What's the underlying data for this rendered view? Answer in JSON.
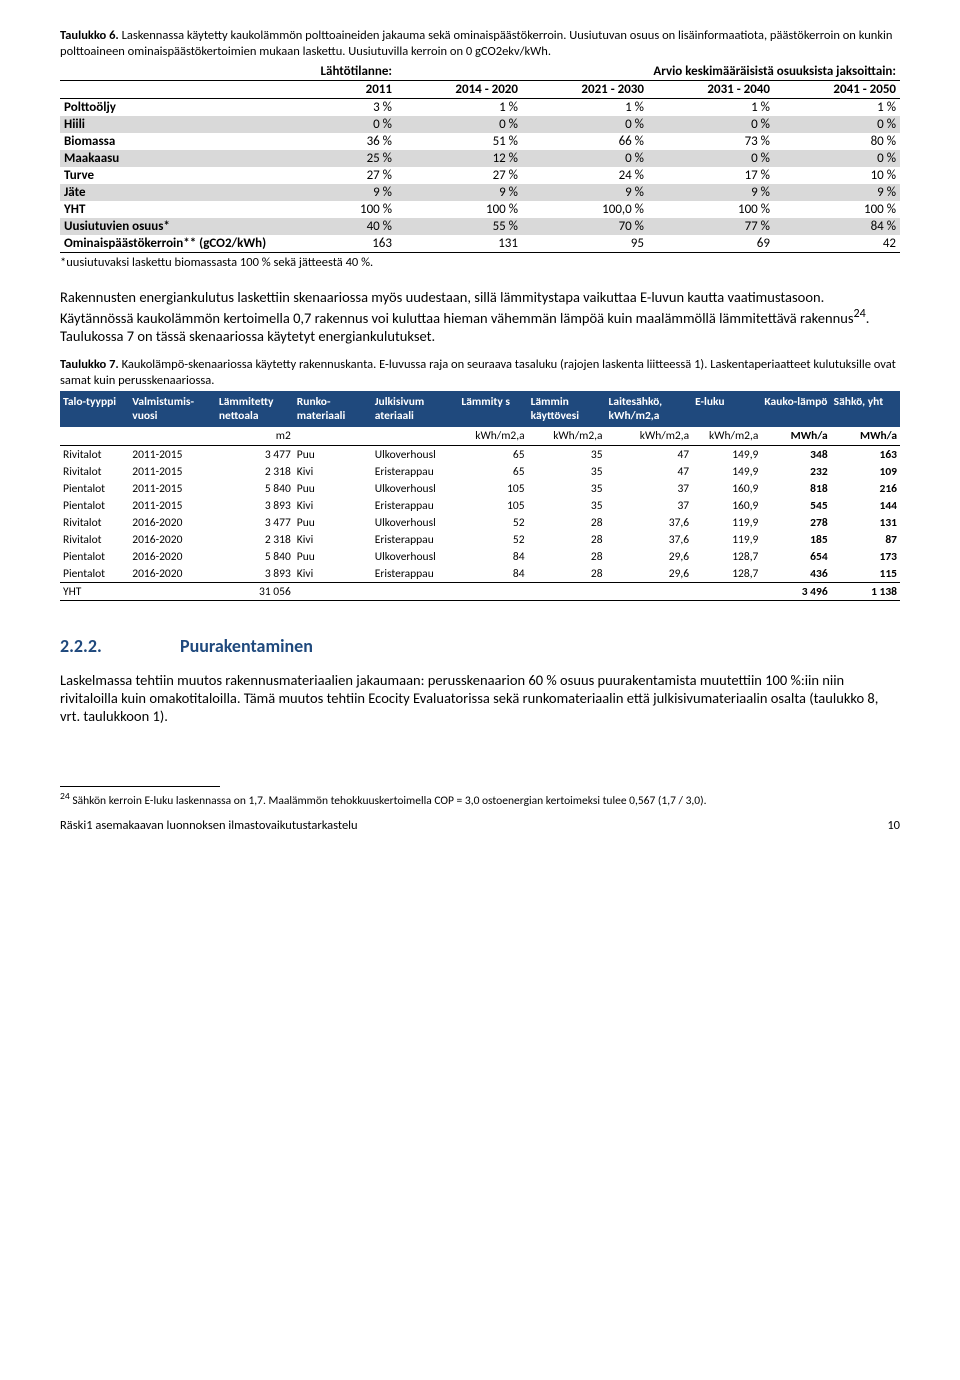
{
  "table6": {
    "caption_bold": "Taulukko 6.",
    "caption_rest": " Laskennassa käytetty kaukolämmön polttoaineiden jakauma sekä ominaispäästökerroin. Uusiutuvan osuus on lisäinformaatiota, päästökerroin on kunkin polttoaineen ominaispäästökertoimien mukaan laskettu. Uusiutuvilla kerroin on 0 gCO2ekv/kWh.",
    "head_a": "Lähtötilanne:",
    "head_b": "Arvio keskimääräisistä osuuksista jaksoittain:",
    "years": [
      "2011",
      "2014 - 2020",
      "2021 - 2030",
      "2031 - 2040",
      "2041 - 2050"
    ],
    "rows": [
      {
        "label": "Polttoöljy",
        "vals": [
          "3 %",
          "1 %",
          "1 %",
          "1 %",
          "1 %"
        ],
        "shade": false
      },
      {
        "label": "Hiili",
        "vals": [
          "0 %",
          "0 %",
          "0 %",
          "0 %",
          "0 %"
        ],
        "shade": true
      },
      {
        "label": "Biomassa",
        "vals": [
          "36 %",
          "51 %",
          "66 %",
          "73 %",
          "80 %"
        ],
        "shade": false
      },
      {
        "label": "Maakaasu",
        "vals": [
          "25 %",
          "12 %",
          "0 %",
          "0 %",
          "0 %"
        ],
        "shade": true
      },
      {
        "label": "Turve",
        "vals": [
          "27 %",
          "27 %",
          "24 %",
          "17 %",
          "10 %"
        ],
        "shade": false
      },
      {
        "label": "Jäte",
        "vals": [
          "9 %",
          "9 %",
          "9 %",
          "9 %",
          "9 %"
        ],
        "shade": true
      },
      {
        "label": "YHT",
        "vals": [
          "100 %",
          "100 %",
          "100,0 %",
          "100 %",
          "100 %"
        ],
        "shade": false
      },
      {
        "label": "Uusiutuvien osuus*",
        "vals": [
          "40 %",
          "55 %",
          "70 %",
          "77 %",
          "84 %"
        ],
        "shade": true
      },
      {
        "label": "Ominaispäästökerroin** (gCO2/kWh)",
        "vals": [
          "163",
          "131",
          "95",
          "69",
          "42"
        ],
        "shade": false,
        "bottom": true
      }
    ],
    "footnote": "*uusiutuvaksi laskettu biomassasta 100 % sekä jätteestä 40 %."
  },
  "para1": "Rakennusten energiankulutus laskettiin skenaariossa myös uudestaan, sillä lämmitystapa vaikuttaa E-luvun kautta vaatimustasoon. Käytännössä kaukolämmön kertoimella 0,7 rakennus voi kuluttaa hieman vähemmän lämpöä kuin maalämmöllä lämmitettävä rakennus",
  "para1_sup": "24",
  "para1_tail": ". Taulukossa 7 on tässä skenaariossa käytetyt energiankulutukset.",
  "table7": {
    "caption_bold": "Taulukko 7.",
    "caption_rest": " Kaukolämpö-skenaariossa käytetty rakennuskanta. E-luvussa raja on seuraava tasaluku (rajojen laskenta liitteessä 1). Laskentaperiaatteet kulutuksille ovat samat kuin perusskenaariossa.",
    "cols": [
      "Talo-tyyppi",
      "Valmistumis-vuosi",
      "Lämmitetty nettoala",
      "Runko-materiaali",
      "Julkisivum ateriaali",
      "Lämmity s",
      "Lämmin käyttövesi",
      "Laitesähkö, kWh/m2,a",
      "E-luku",
      "Kauko-lämpö",
      "Sähkö, yht"
    ],
    "units": [
      "",
      "",
      "m2",
      "",
      "",
      "kWh/m2,a",
      "kWh/m2,a",
      "kWh/m2,a",
      "kWh/m2,a",
      "MWh/a",
      "MWh/a"
    ],
    "rows": [
      [
        "Rivitalot",
        "2011-2015",
        "3 477",
        "Puu",
        "Ulkoverhousl",
        "65",
        "35",
        "47",
        "149,9",
        "348",
        "163"
      ],
      [
        "Rivitalot",
        "2011-2015",
        "2 318",
        "Kivi",
        "Eristerappau",
        "65",
        "35",
        "47",
        "149,9",
        "232",
        "109"
      ],
      [
        "Pientalot",
        "2011-2015",
        "5 840",
        "Puu",
        "Ulkoverhousl",
        "105",
        "35",
        "37",
        "160,9",
        "818",
        "216"
      ],
      [
        "Pientalot",
        "2011-2015",
        "3 893",
        "Kivi",
        "Eristerappau",
        "105",
        "35",
        "37",
        "160,9",
        "545",
        "144"
      ],
      [
        "Rivitalot",
        "2016-2020",
        "3 477",
        "Puu",
        "Ulkoverhousl",
        "52",
        "28",
        "37,6",
        "119,9",
        "278",
        "131"
      ],
      [
        "Rivitalot",
        "2016-2020",
        "2 318",
        "Kivi",
        "Eristerappau",
        "52",
        "28",
        "37,6",
        "119,9",
        "185",
        "87"
      ],
      [
        "Pientalot",
        "2016-2020",
        "5 840",
        "Puu",
        "Ulkoverhousl",
        "84",
        "28",
        "29,6",
        "128,7",
        "654",
        "173"
      ],
      [
        "Pientalot",
        "2016-2020",
        "3 893",
        "Kivi",
        "Eristerappau",
        "84",
        "28",
        "29,6",
        "128,7",
        "436",
        "115"
      ]
    ],
    "yht": [
      "YHT",
      "",
      "31 056",
      "",
      "",
      "",
      "",
      "",
      "",
      "3 496",
      "1 138"
    ]
  },
  "heading": {
    "num": "2.2.2.",
    "title": "Puurakentaminen"
  },
  "para2": "Laskelmassa tehtiin muutos rakennusmateriaalien jakaumaan: perusskenaarion 60 % osuus puurakentamista muutettiin 100 %:iin niin rivitaloilla kuin omakotitaloilla. Tämä muutos tehtiin Ecocity Evaluatorissa sekä runkomateriaalin että julkisivumateriaalin osalta (taulukko 8, vrt. taulukkoon 1).",
  "footnote24": "24",
  "footnote24_text": " Sähkön kerroin E-luku laskennassa on 1,7. Maalämmön tehokkuuskertoimella COP = 3,0 ostoenergian kertoimeksi tulee 0,567 (1,7 / 3,0).",
  "running_left": "Räski1 asemakaavan luonnoksen ilmastovaikutustarkastelu",
  "running_right": "10"
}
